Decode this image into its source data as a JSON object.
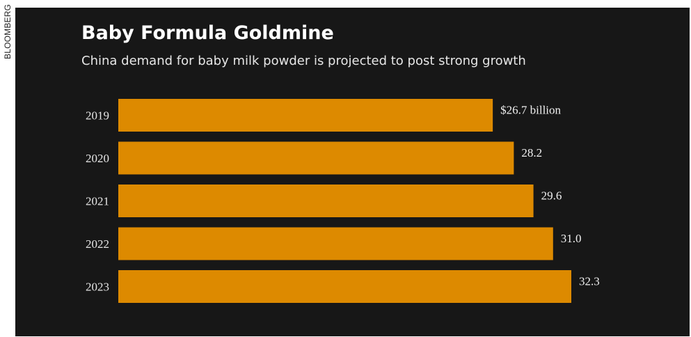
{
  "credit": "BLOOMBERG",
  "colors": {
    "background": "#171717",
    "bar": "#dd8a00",
    "text": "#e6e6e6"
  },
  "chart_data": {
    "type": "bar",
    "orientation": "horizontal",
    "title": "Baby Formula Goldmine",
    "subtitle": "China demand for baby milk powder is projected to post strong growth",
    "categories": [
      "2019",
      "2020",
      "2021",
      "2022",
      "2023"
    ],
    "values": [
      26.7,
      28.2,
      29.6,
      31.0,
      32.3
    ],
    "value_labels": [
      "$26.7 billion",
      "28.2",
      "29.6",
      "31.0",
      "32.3"
    ],
    "unit": "billion USD",
    "xlim": [
      0,
      32.3
    ],
    "grid": false,
    "legend": "none"
  }
}
